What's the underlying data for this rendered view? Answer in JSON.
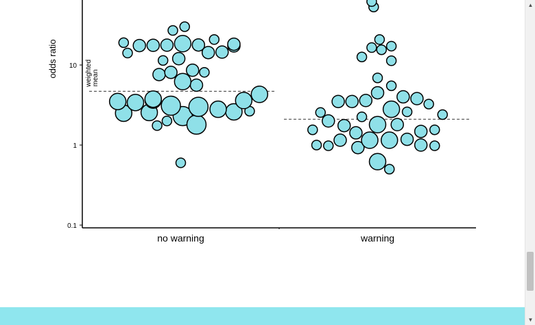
{
  "chart_data": {
    "type": "scatter",
    "subtype": "beeswarm",
    "categories": [
      "no warning",
      "warning"
    ],
    "ylabel": "odds ratio",
    "yscale": "log",
    "ylim": [
      0.09,
      70
    ],
    "yticks": [
      {
        "value": 0.1,
        "label": "0.1"
      },
      {
        "value": 1,
        "label": "1"
      },
      {
        "value": 10,
        "label": "10"
      }
    ],
    "annotation": {
      "lines": [
        "weighted",
        "mean"
      ],
      "style": "dashed"
    },
    "weighted_means": [
      {
        "category": "no warning",
        "value": 4.7
      },
      {
        "category": "warning",
        "value": 2.1
      }
    ],
    "point_color": "#8fe0e8",
    "series": [
      {
        "category": "no warning",
        "points": [
          {
            "y": 0.6,
            "offset": 0.0,
            "size": 1
          },
          {
            "y": 1.75,
            "offset": -0.12,
            "size": 1
          },
          {
            "y": 2.0,
            "offset": -0.07,
            "size": 1
          },
          {
            "y": 2.3,
            "offset": 0.01,
            "size": 4
          },
          {
            "y": 1.8,
            "offset": 0.08,
            "size": 4
          },
          {
            "y": 2.5,
            "offset": -0.29,
            "size": 3
          },
          {
            "y": 2.55,
            "offset": -0.16,
            "size": 3
          },
          {
            "y": 2.6,
            "offset": 0.27,
            "size": 3
          },
          {
            "y": 2.65,
            "offset": 0.35,
            "size": 1
          },
          {
            "y": 2.8,
            "offset": 0.19,
            "size": 3
          },
          {
            "y": 3.0,
            "offset": 0.09,
            "size": 4
          },
          {
            "y": 3.1,
            "offset": -0.05,
            "size": 4
          },
          {
            "y": 3.4,
            "offset": -0.23,
            "size": 3
          },
          {
            "y": 3.5,
            "offset": -0.32,
            "size": 2
          },
          {
            "y": 3.5,
            "offset": -0.32,
            "size": 3
          },
          {
            "y": 3.65,
            "offset": -0.14,
            "size": 3
          },
          {
            "y": 3.6,
            "offset": 0.32,
            "size": 3
          },
          {
            "y": 3.75,
            "offset": -0.14,
            "size": 3
          },
          {
            "y": 4.3,
            "offset": 0.4,
            "size": 3
          },
          {
            "y": 5.6,
            "offset": 0.08,
            "size": 2
          },
          {
            "y": 6.2,
            "offset": 0.01,
            "size": 3
          },
          {
            "y": 7.6,
            "offset": -0.11,
            "size": 2
          },
          {
            "y": 8.1,
            "offset": -0.05,
            "size": 2
          },
          {
            "y": 8.1,
            "offset": 0.12,
            "size": 1
          },
          {
            "y": 8.6,
            "offset": 0.06,
            "size": 2
          },
          {
            "y": 11.4,
            "offset": -0.09,
            "size": 1
          },
          {
            "y": 12.0,
            "offset": -0.01,
            "size": 2
          },
          {
            "y": 14.1,
            "offset": -0.27,
            "size": 1
          },
          {
            "y": 14.3,
            "offset": 0.14,
            "size": 2
          },
          {
            "y": 14.5,
            "offset": 0.21,
            "size": 2
          },
          {
            "y": 17.3,
            "offset": 0.27,
            "size": 2
          },
          {
            "y": 17.5,
            "offset": -0.21,
            "size": 2
          },
          {
            "y": 17.6,
            "offset": -0.14,
            "size": 2
          },
          {
            "y": 17.7,
            "offset": -0.07,
            "size": 2
          },
          {
            "y": 17.8,
            "offset": 0.09,
            "size": 2
          },
          {
            "y": 18.2,
            "offset": 0.27,
            "size": 2
          },
          {
            "y": 18.5,
            "offset": 0.01,
            "size": 3
          },
          {
            "y": 19.0,
            "offset": -0.29,
            "size": 1
          },
          {
            "y": 20.8,
            "offset": 0.17,
            "size": 1
          },
          {
            "y": 27.0,
            "offset": -0.04,
            "size": 1
          },
          {
            "y": 30.1,
            "offset": 0.02,
            "size": 1
          }
        ]
      },
      {
        "category": "warning",
        "points": [
          {
            "y": 0.5,
            "offset": 0.06,
            "size": 1
          },
          {
            "y": 0.62,
            "offset": 0.0,
            "size": 3
          },
          {
            "y": 0.98,
            "offset": -0.25,
            "size": 1
          },
          {
            "y": 0.98,
            "offset": 0.29,
            "size": 1
          },
          {
            "y": 1.0,
            "offset": -0.31,
            "size": 1
          },
          {
            "y": 1.0,
            "offset": 0.22,
            "size": 2
          },
          {
            "y": 0.93,
            "offset": -0.1,
            "size": 2
          },
          {
            "y": 1.15,
            "offset": -0.19,
            "size": 2
          },
          {
            "y": 1.18,
            "offset": 0.15,
            "size": 2
          },
          {
            "y": 1.15,
            "offset": -0.04,
            "size": 3
          },
          {
            "y": 1.15,
            "offset": 0.06,
            "size": 3
          },
          {
            "y": 1.42,
            "offset": -0.11,
            "size": 2
          },
          {
            "y": 1.48,
            "offset": 0.22,
            "size": 2
          },
          {
            "y": 1.55,
            "offset": -0.33,
            "size": 1
          },
          {
            "y": 1.55,
            "offset": 0.29,
            "size": 1
          },
          {
            "y": 1.75,
            "offset": -0.17,
            "size": 2
          },
          {
            "y": 1.8,
            "offset": 0.1,
            "size": 2
          },
          {
            "y": 1.8,
            "offset": 0.0,
            "size": 3
          },
          {
            "y": 2.0,
            "offset": -0.25,
            "size": 2
          },
          {
            "y": 2.25,
            "offset": -0.08,
            "size": 1
          },
          {
            "y": 2.4,
            "offset": 0.33,
            "size": 1
          },
          {
            "y": 2.55,
            "offset": -0.29,
            "size": 1
          },
          {
            "y": 2.6,
            "offset": 0.15,
            "size": 1
          },
          {
            "y": 2.8,
            "offset": 0.07,
            "size": 3
          },
          {
            "y": 3.25,
            "offset": 0.26,
            "size": 1
          },
          {
            "y": 3.5,
            "offset": -0.2,
            "size": 2
          },
          {
            "y": 3.5,
            "offset": -0.13,
            "size": 2
          },
          {
            "y": 3.6,
            "offset": -0.06,
            "size": 2
          },
          {
            "y": 3.8,
            "offset": 0.2,
            "size": 2
          },
          {
            "y": 4.0,
            "offset": 0.13,
            "size": 2
          },
          {
            "y": 4.5,
            "offset": 0.0,
            "size": 2
          },
          {
            "y": 5.5,
            "offset": 0.07,
            "size": 1
          },
          {
            "y": 6.9,
            "offset": 0.0,
            "size": 1
          },
          {
            "y": 11.3,
            "offset": 0.07,
            "size": 1
          },
          {
            "y": 12.6,
            "offset": -0.08,
            "size": 1
          },
          {
            "y": 15.5,
            "offset": 0.02,
            "size": 1
          },
          {
            "y": 16.5,
            "offset": -0.03,
            "size": 1
          },
          {
            "y": 17.2,
            "offset": 0.07,
            "size": 1
          },
          {
            "y": 20.8,
            "offset": 0.01,
            "size": 1
          },
          {
            "y": 53.0,
            "offset": -0.02,
            "size": 1
          },
          {
            "y": 62.0,
            "offset": -0.03,
            "size": 1
          }
        ]
      }
    ]
  }
}
